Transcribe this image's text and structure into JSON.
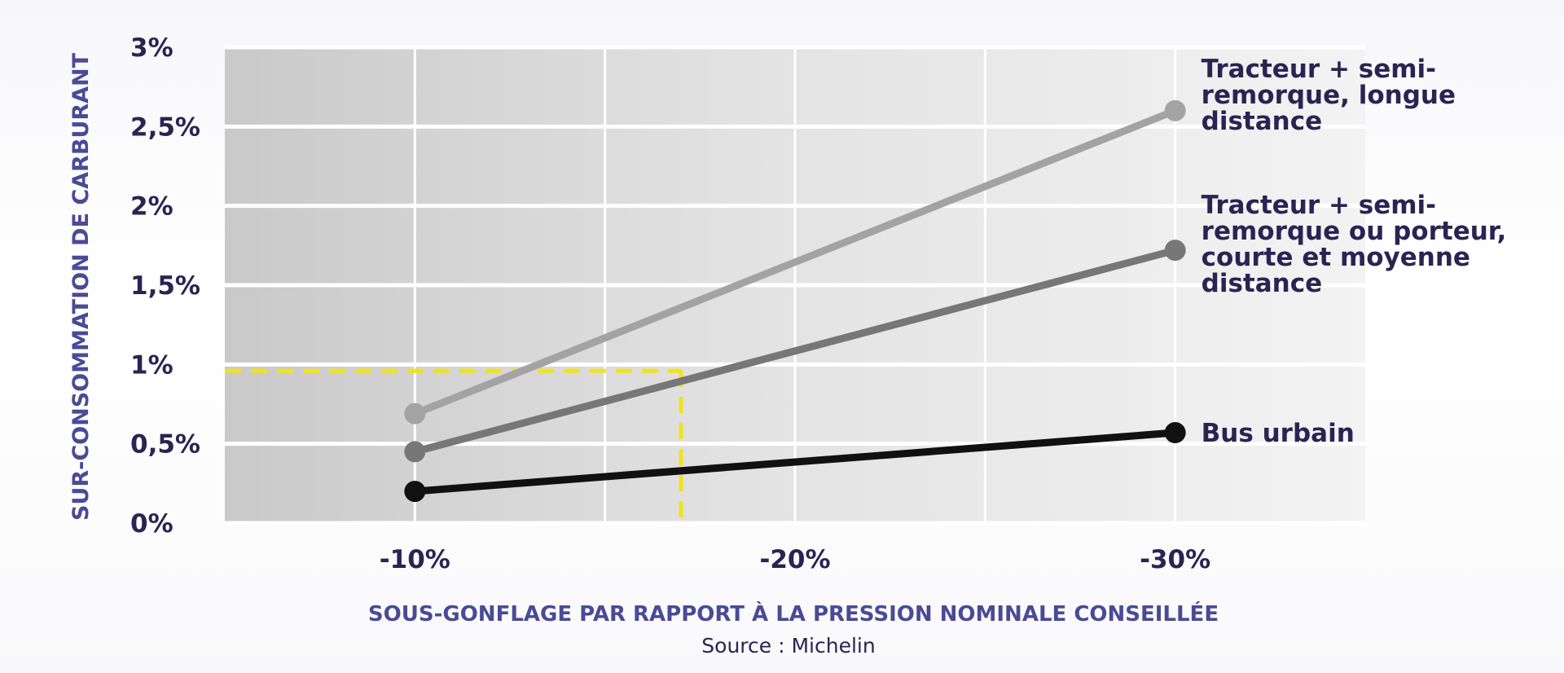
{
  "chart_data": {
    "type": "line",
    "xlabel": "SOUS-GONFLAGE PAR RAPPORT À LA PRESSION NOMINALE CONSEILLÉE",
    "ylabel": "SUR-CONSOMMATION DE CARBURANT",
    "source": "Source : Michelin",
    "x": [
      -10,
      -30
    ],
    "xlim": [
      -5,
      -35
    ],
    "ylim": [
      0,
      3
    ],
    "x_ticks": [
      -10,
      -20,
      -30
    ],
    "x_tick_labels": [
      "-10%",
      "-20%",
      "-30%"
    ],
    "y_ticks": [
      0,
      0.5,
      1,
      1.5,
      2,
      2.5,
      3
    ],
    "y_tick_labels": [
      "0%",
      "0,5%",
      "1%",
      "1,5%",
      "2%",
      "2,5%",
      "3%"
    ],
    "grid": true,
    "series": [
      {
        "name": "Tracteur + semi-remorque, longue distance",
        "label_lines": [
          "Tracteur + semi-",
          "remorque, longue",
          "distance"
        ],
        "values": [
          0.69,
          2.6
        ],
        "color": "#a3a3a3"
      },
      {
        "name": "Tracteur + semi-remorque ou porteur, courte et moyenne distance",
        "label_lines": [
          "Tracteur + semi-",
          "remorque ou porteur,",
          "courte et moyenne",
          "distance"
        ],
        "values": [
          0.45,
          1.72
        ],
        "color": "#777777"
      },
      {
        "name": "Bus urbain",
        "label_lines": [
          "Bus urbain"
        ],
        "values": [
          0.2,
          0.57
        ],
        "color": "#111111"
      }
    ],
    "reference_guide": {
      "x": -17,
      "y": 0.96,
      "color": "#f2e21b",
      "style": "dashed"
    }
  }
}
